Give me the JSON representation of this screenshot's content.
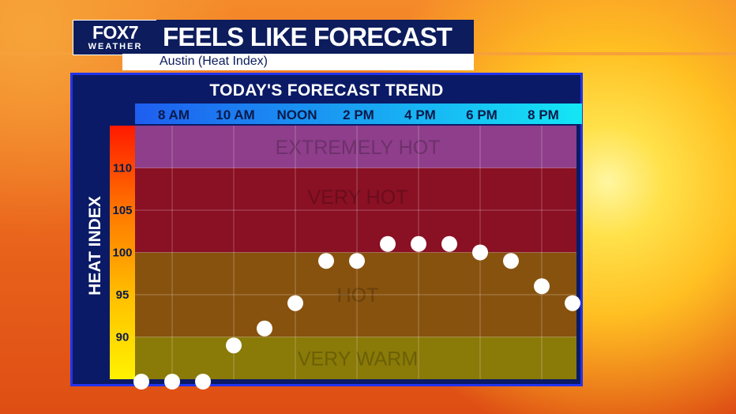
{
  "header": {
    "logo_main": "FOX7",
    "logo_sub": "WEATHER",
    "title": "FEELS LIKE FORECAST",
    "subtitle": "Austin (Heat Index)"
  },
  "chart_data": {
    "type": "scatter",
    "title": "TODAY'S FORECAST TREND",
    "ylabel": "HEAT INDEX",
    "xlabel": "",
    "ylim": [
      85,
      115
    ],
    "x_tick_labels": [
      "8 AM",
      "10 AM",
      "NOON",
      "2 PM",
      "4 PM",
      "6 PM",
      "8 PM"
    ],
    "y_ticks": [
      90,
      95,
      100,
      105,
      110
    ],
    "grid": true,
    "x": [
      "7 AM",
      "8 AM",
      "9 AM",
      "10 AM",
      "11 AM",
      "NOON",
      "1 PM",
      "2 PM",
      "3 PM",
      "4 PM",
      "5 PM",
      "6 PM",
      "7 PM",
      "8 PM",
      "9 PM"
    ],
    "values": [
      85,
      85,
      85,
      89,
      91,
      94,
      99,
      99,
      101,
      101,
      101,
      100,
      99,
      96,
      94
    ],
    "bands": [
      {
        "label": "VERY WARM",
        "from": 85,
        "to": 90,
        "color": "#8a7a08"
      },
      {
        "label": "HOT",
        "from": 90,
        "to": 100,
        "color": "#87520e"
      },
      {
        "label": "VERY HOT",
        "from": 100,
        "to": 110,
        "color": "#8a1024"
      },
      {
        "label": "EXTREMELY HOT",
        "from": 110,
        "to": 115,
        "color": "#8e3e8a"
      }
    ],
    "point_color": "#ffffff"
  }
}
